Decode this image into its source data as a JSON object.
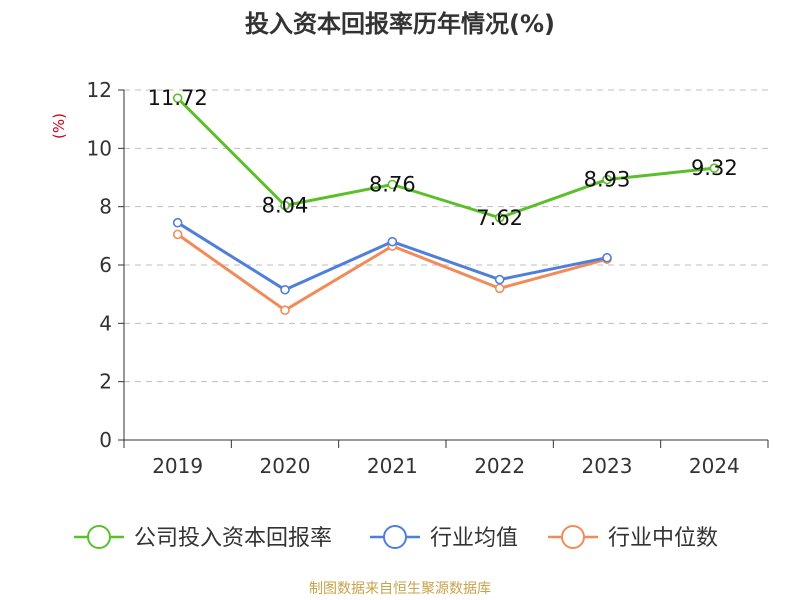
{
  "chart_data": {
    "type": "line",
    "title": "投入资本回报率历年情况(%)",
    "ylabel": "(%)",
    "xlabel": "",
    "categories": [
      "2019",
      "2020",
      "2021",
      "2022",
      "2023",
      "2024"
    ],
    "ylim": [
      0,
      12
    ],
    "yticks": [
      0,
      2,
      4,
      6,
      8,
      10,
      12
    ],
    "grid": true,
    "legend_position": "bottom",
    "series": [
      {
        "name": "公司投入资本回报率",
        "color": "#5bbf2a",
        "values": [
          11.72,
          8.04,
          8.76,
          7.62,
          8.93,
          9.32
        ],
        "labels": [
          "11.72",
          "8.04",
          "8.76",
          "7.62",
          "8.93",
          "9.32"
        ]
      },
      {
        "name": "行业均值",
        "color": "#4f7fdb",
        "values": [
          7.45,
          5.15,
          6.8,
          5.5,
          6.25,
          null
        ]
      },
      {
        "name": "行业中位数",
        "color": "#f28b5a",
        "values": [
          7.05,
          4.45,
          6.65,
          5.2,
          6.2,
          null
        ]
      }
    ]
  },
  "source": "制图数据来自恒生聚源数据库"
}
